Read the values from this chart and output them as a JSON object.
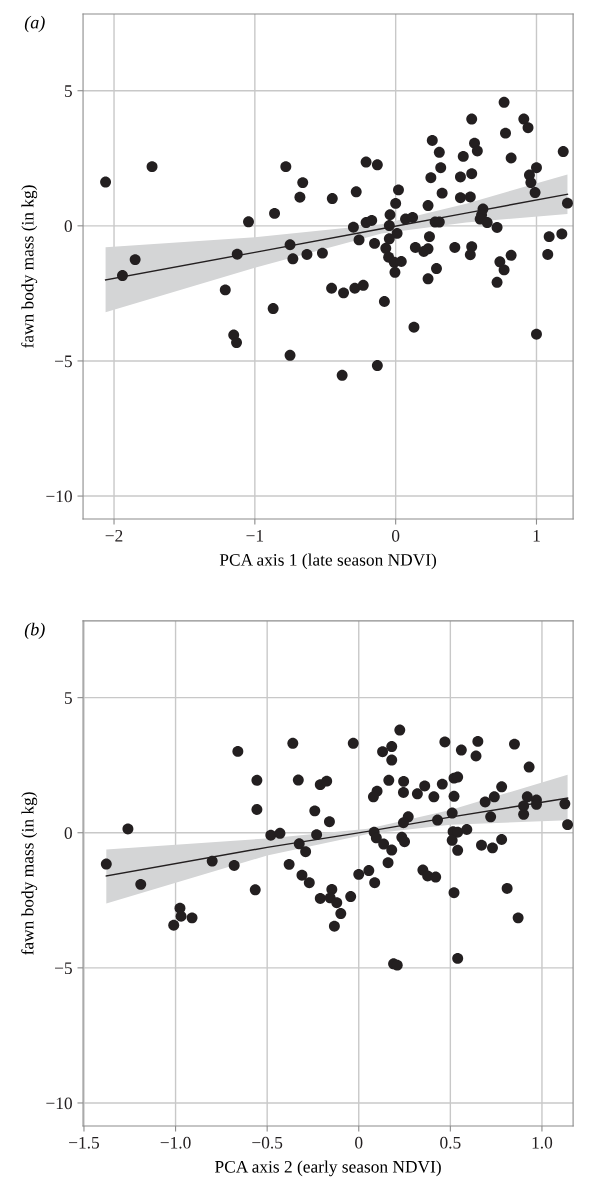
{
  "chart_data": [
    {
      "type": "scatter",
      "title": "(a)",
      "xlabel": "PCA axis 1 (late season NDVI)",
      "ylabel": "fawn body mass (in kg)",
      "xlim": [
        -2.22,
        1.26
      ],
      "ylim": [
        -10.85,
        7.84
      ],
      "xticks": [
        -2,
        -1,
        0,
        1
      ],
      "yticks": [
        -10,
        -5,
        0,
        5
      ],
      "grid": true,
      "series": [
        {
          "type": "scatter",
          "marker": "circle",
          "color": "#231f20",
          "x": [
            -2.06,
            -1.73,
            -1.85,
            -1.94,
            -0.78,
            -0.66,
            -0.68,
            -0.45,
            -0.86,
            -1.045,
            -1.125,
            -0.75,
            -0.73,
            -0.63,
            -0.52,
            -1.21,
            -0.87,
            -1.15,
            -1.13,
            -0.75,
            0.77,
            0.54,
            0.91,
            0.94,
            0.78,
            0.26,
            0.56,
            0.58,
            0.31,
            0.48,
            1.19,
            0.82,
            -0.21,
            -0.13,
            0.32,
            1.0,
            0.25,
            0.46,
            0.54,
            0.95,
            0.96,
            0.99,
            -0.28,
            0.02,
            0.33,
            0.46,
            0.53,
            0.0,
            0.23,
            -0.04,
            1.22,
            0.62,
            0.61,
            0.6,
            0.65,
            -0.21,
            -0.17,
            -0.3,
            -0.045,
            0.07,
            0.12,
            0.28,
            0.31,
            0.72,
            -0.26,
            -0.15,
            0.01,
            -0.045,
            -0.07,
            0.24,
            0.14,
            0.23,
            0.2,
            0.42,
            0.54,
            0.53,
            -0.05,
            -0.01,
            0.04,
            -0.005,
            0.29,
            0.23,
            0.74,
            0.77,
            0.82,
            0.72,
            1.09,
            1.18,
            1.08,
            -0.455,
            -0.37,
            -0.29,
            -0.23,
            -0.08,
            0.13,
            1.0,
            -0.13,
            -0.38
          ],
          "values": [
            1.62,
            2.19,
            -1.25,
            -1.84,
            2.19,
            1.6,
            1.06,
            1.01,
            0.46,
            0.15,
            -1.05,
            -0.7,
            -1.22,
            -1.06,
            -1.01,
            -2.37,
            -3.06,
            -4.04,
            -4.32,
            -4.79,
            4.57,
            3.95,
            3.95,
            3.63,
            3.43,
            3.16,
            3.06,
            2.77,
            2.72,
            2.57,
            2.75,
            2.51,
            2.36,
            2.26,
            2.15,
            2.15,
            1.78,
            1.81,
            1.93,
            1.88,
            1.6,
            1.23,
            1.26,
            1.33,
            1.21,
            1.04,
            1.07,
            0.83,
            0.75,
            0.41,
            0.84,
            0.62,
            0.4,
            0.25,
            0.12,
            0.12,
            0.2,
            -0.05,
            0.01,
            0.25,
            0.31,
            0.14,
            0.14,
            -0.06,
            -0.52,
            -0.65,
            -0.28,
            -0.48,
            -0.83,
            -0.4,
            -0.8,
            -0.85,
            -0.95,
            -0.8,
            -0.77,
            -1.07,
            -1.16,
            -1.35,
            -1.32,
            -1.72,
            -1.58,
            -1.96,
            -1.33,
            -1.63,
            -1.09,
            -2.09,
            -0.4,
            -0.3,
            -1.06,
            -2.31,
            -2.48,
            -2.31,
            -2.2,
            -2.8,
            -3.75,
            -4.01,
            -5.17,
            -5.53
          ]
        },
        {
          "type": "line",
          "marker": "none",
          "color": "#231f20",
          "x": [
            -2.06,
            -1.0,
            -0.1,
            0.5,
            1.22
          ],
          "values": [
            -2.0,
            -0.98,
            -0.11,
            0.47,
            1.17
          ],
          "lower": [
            -3.2,
            -1.55,
            -0.28,
            0.12,
            0.44
          ],
          "upper": [
            -0.79,
            -0.42,
            0.06,
            0.82,
            1.9
          ]
        }
      ]
    },
    {
      "type": "scatter",
      "title": "(b)",
      "xlabel": "PCA axis 2 (early season NDVI)",
      "ylabel": "fawn body mass (in kg)",
      "xlim": [
        -1.505,
        1.17
      ],
      "ylim": [
        -10.85,
        7.84
      ],
      "xticks": [
        -1.5,
        {
          "value": -1.0,
          "label": "−1.0"
        },
        -0.5,
        0,
        0.5,
        {
          "value": 1.0,
          "label": "1.0"
        }
      ],
      "yticks": [
        -10,
        -5,
        0,
        5
      ],
      "grid": true,
      "series": [
        {
          "type": "scatter",
          "marker": "circle",
          "color": "#231f20",
          "x": [
            -1.378,
            -1.26,
            -1.19,
            -0.976,
            -0.97,
            -0.91,
            -1.01,
            -0.8,
            -0.68,
            -0.66,
            -0.556,
            -0.556,
            -0.565,
            -0.48,
            -0.43,
            -0.36,
            -0.33,
            -0.21,
            -0.175,
            -0.24,
            -0.16,
            -0.23,
            -0.325,
            -0.29,
            -0.38,
            -0.31,
            -0.27,
            -0.21,
            0.224,
            -0.03,
            0.13,
            0.18,
            0.18,
            0.47,
            0.56,
            0.65,
            0.64,
            0.85,
            0.93,
            0.164,
            0.245,
            0.244,
            0.32,
            0.36,
            0.41,
            0.456,
            0.52,
            0.54,
            0.52,
            0.1,
            0.08,
            0.78,
            0.74,
            0.69,
            0.92,
            0.97,
            0.97,
            0.9,
            0.9,
            1.125,
            1.14,
            0.72,
            0.27,
            0.244,
            0.43,
            0.51,
            0.084,
            0.096,
            0.136,
            0.18,
            0.235,
            0.25,
            0.515,
            0.54,
            0.59,
            0.51,
            0.54,
            0.67,
            0.73,
            0.78,
            0.16,
            0.055,
            0.0,
            0.087,
            0.35,
            0.376,
            0.42,
            0.52,
            0.81,
            0.87,
            -0.044,
            -0.147,
            -0.156,
            -0.12,
            -0.098,
            -0.133,
            0.19,
            0.21,
            0.54
          ],
          "values": [
            -1.16,
            0.14,
            -1.91,
            -2.79,
            -3.09,
            -3.15,
            -3.42,
            -1.05,
            -1.21,
            3.01,
            1.94,
            0.86,
            -2.11,
            -0.09,
            -0.02,
            3.31,
            1.95,
            1.78,
            1.91,
            0.81,
            0.41,
            -0.07,
            -0.41,
            -0.7,
            -1.17,
            -1.57,
            -1.85,
            -2.43,
            3.8,
            3.31,
            3.0,
            3.19,
            2.69,
            3.36,
            3.06,
            3.38,
            2.84,
            3.28,
            2.43,
            1.94,
            1.9,
            1.49,
            1.44,
            1.73,
            1.33,
            1.8,
            2.02,
            2.06,
            1.35,
            1.54,
            1.33,
            1.7,
            1.33,
            1.14,
            1.33,
            1.21,
            1.05,
            0.99,
            0.68,
            1.07,
            0.3,
            0.59,
            0.59,
            0.37,
            0.47,
            0.73,
            0.02,
            -0.19,
            -0.42,
            -0.64,
            -0.17,
            -0.33,
            0.04,
            0.02,
            0.12,
            -0.28,
            -0.65,
            -0.46,
            -0.56,
            -0.25,
            -1.11,
            -1.4,
            -1.54,
            -1.85,
            -1.38,
            -1.6,
            -1.64,
            -2.22,
            -2.06,
            -3.15,
            -2.36,
            -2.1,
            -2.41,
            -2.59,
            -2.99,
            -3.46,
            -4.85,
            -4.9,
            -4.65
          ]
        },
        {
          "type": "line",
          "marker": "none",
          "color": "#231f20",
          "x": [
            -1.378,
            -0.5,
            0.05,
            0.5,
            1.14
          ],
          "values": [
            -1.6,
            -0.54,
            0.05,
            0.58,
            1.28
          ],
          "lower": [
            -2.62,
            -0.84,
            -0.05,
            0.3,
            0.46
          ],
          "upper": [
            -0.62,
            -0.21,
            0.15,
            0.84,
            2.15
          ]
        }
      ]
    }
  ]
}
